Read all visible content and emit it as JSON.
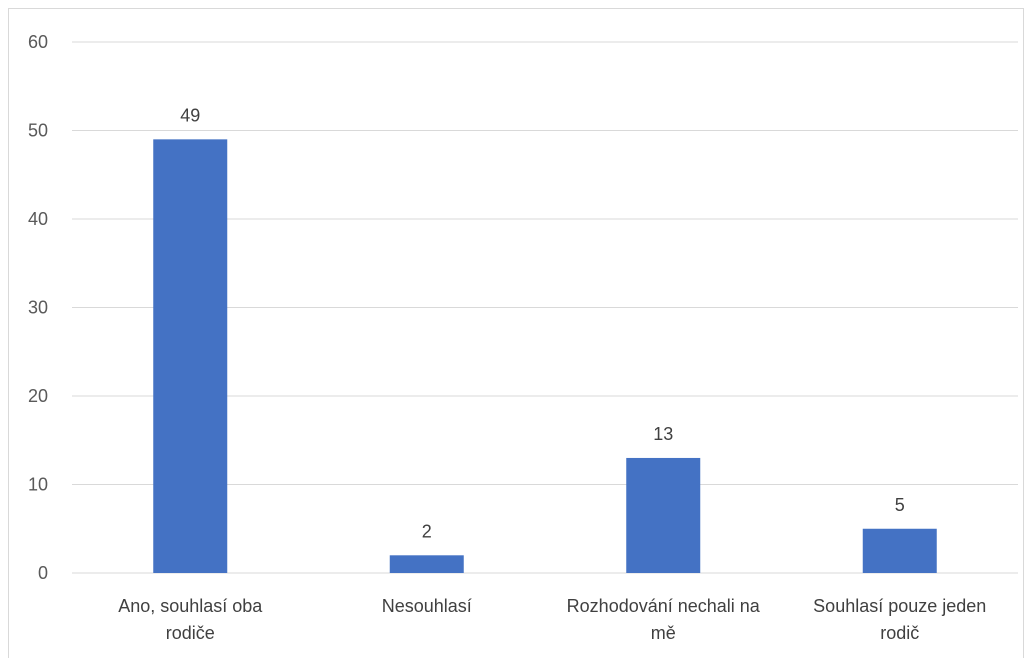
{
  "chart_data": {
    "type": "bar",
    "categories": [
      [
        "Ano, souhlasí oba",
        "rodiče"
      ],
      [
        "Nesouhlasí"
      ],
      [
        "Rozhodování nechali na",
        "mě"
      ],
      [
        "Souhlasí pouze jeden",
        "rodič"
      ]
    ],
    "values": [
      49,
      2,
      13,
      5
    ],
    "data_labels": [
      "49",
      "2",
      "13",
      "5"
    ],
    "ylim": [
      0,
      60
    ],
    "yticks": [
      "0",
      "10",
      "20",
      "30",
      "40",
      "50",
      "60"
    ],
    "xlabel": "",
    "ylabel": "",
    "title": "",
    "grid": true,
    "legend": "none",
    "bar_color": "#4472C4",
    "grid_color": "#d9d9d9"
  }
}
